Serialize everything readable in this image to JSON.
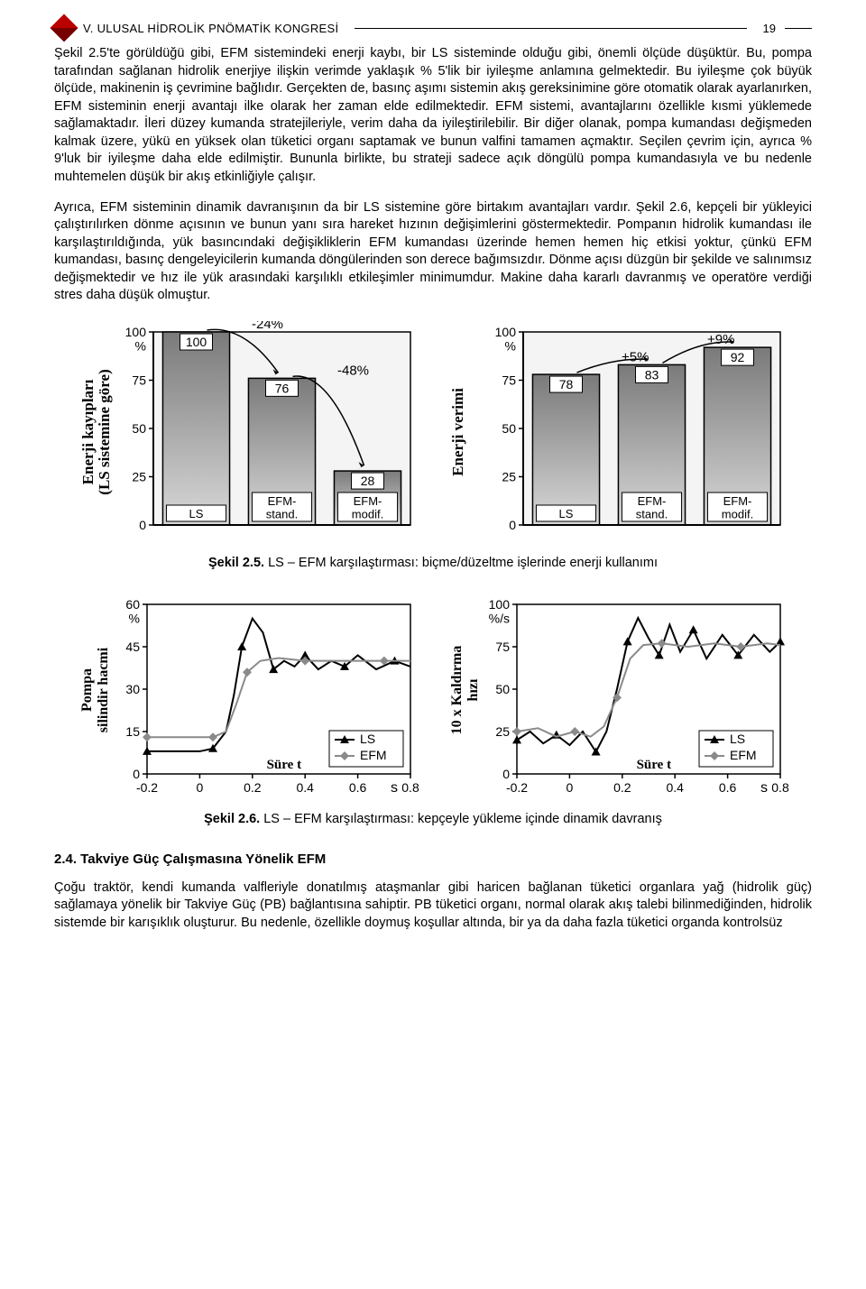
{
  "header": {
    "title": "V. ULUSAL HİDROLİK PNÖMATİK KONGRESİ",
    "page": "19"
  },
  "para1": "Şekil 2.5'te görüldüğü gibi, EFM sistemindeki enerji kaybı, bir LS sisteminde olduğu gibi, önemli ölçüde düşüktür. Bu, pompa tarafından sağlanan hidrolik enerjiye ilişkin verimde yaklaşık % 5'lik bir iyileşme anlamına gelmektedir. Bu iyileşme çok büyük ölçüde, makinenin iş çevrimine bağlıdır. Gerçekten de, basınç aşımı sistemin akış gereksinimine göre otomatik olarak ayarlanırken, EFM sisteminin enerji avantajı ilke olarak her zaman elde edilmektedir. EFM sistemi, avantajlarını özellikle kısmi yüklemede sağlamaktadır. İleri düzey kumanda stratejileriyle, verim daha da iyileştirilebilir. Bir diğer olanak, pompa kumandası değişmeden kalmak üzere, yükü en yüksek olan tüketici organı saptamak ve bunun valfini tamamen açmaktır. Seçilen çevrim için, ayrıca % 9'luk bir iyileşme daha elde edilmiştir. Bununla birlikte, bu strateji sadece açık döngülü pompa kumandasıyla ve bu nedenle muhtemelen düşük bir akış etkinliğiyle çalışır.",
  "para2": "Ayrıca, EFM sisteminin dinamik davranışının da bir LS sistemine göre birtakım avantajları vardır. Şekil 2.6, kepçeli bir yükleyici çalıştırılırken dönme açısının ve bunun yanı sıra hareket hızının değişimlerini göstermektedir. Pompanın hidrolik kumandası ile karşılaştırıldığında, yük basıncındaki değişikliklerin EFM kumandası üzerinde hemen hemen hiç etkisi yoktur, çünkü EFM kumandası, basınç dengeleyicilerin kumanda döngülerinden son derece bağımsızdır. Dönme açısı düzgün bir şekilde ve salınımsız değişmektedir ve hız ile yük arasındaki karşılıklı etkileşimler minimumdur. Makine daha kararlı davranmış ve operatöre verdiği stres daha düşük olmuştur.",
  "caption25_b": "Şekil 2.5.",
  "caption25_t": " LS – EFM karşılaştırması: biçme/düzeltme işlerinde enerji kullanımı",
  "caption26_b": "Şekil 2.6.",
  "caption26_t": " LS – EFM karşılaştırması: kepçeyle yükleme içinde dinamik davranış",
  "section24": "2.4. Takviye Güç Çalışmasına Yönelik EFM",
  "para3": "Çoğu traktör, kendi kumanda valfleriyle donatılmış ataşmanlar gibi haricen bağlanan tüketici organlara yağ (hidrolik güç) sağlamaya yönelik bir Takviye Güç (PB) bağlantısına sahiptir. PB tüketici organı, normal olarak akış talebi bilinmediğinden, hidrolik sistemde bir karışıklık oluşturur. Bu nedenle, özellikle doymuş koşullar altında, bir ya da daha fazla tüketici organda kontrolsüz",
  "chart_a": {
    "type": "bar",
    "ylabel": "Enerji kayıpları\n(LS sistemine göre)",
    "yticks": [
      0,
      25,
      50,
      75,
      100
    ],
    "ytick_labels": [
      "0",
      "25",
      "50",
      "75",
      "100\n%"
    ],
    "categories": [
      "LS",
      "EFM-\nstand.",
      "EFM-\nmodif."
    ],
    "values": [
      100,
      76,
      28
    ],
    "bar_labels": [
      "100",
      "76",
      "28"
    ],
    "arrows": [
      {
        "from_bar": 0,
        "to_bar": 1,
        "label": "-24%"
      },
      {
        "from_bar": 1,
        "to_bar": 2,
        "label": "-48%"
      }
    ],
    "bar_fill_top": "#7a7a7a",
    "bar_fill_bot": "#d8d8d8",
    "stroke": "#000",
    "bg": "#f4f4f4",
    "axis_font": 14,
    "label_font": 16
  },
  "chart_b": {
    "type": "bar",
    "ylabel": "Enerji verimi",
    "yticks": [
      0,
      25,
      50,
      75,
      100
    ],
    "ytick_labels": [
      "0",
      "25",
      "50",
      "75",
      "100\n%"
    ],
    "categories": [
      "LS",
      "EFM-\nstand.",
      "EFM-\nmodif."
    ],
    "values": [
      78,
      83,
      92
    ],
    "bar_labels": [
      "78",
      "83",
      "92"
    ],
    "arrows": [
      {
        "from_bar": 0,
        "to_bar": 1,
        "label": "+5%"
      },
      {
        "from_bar": 1,
        "to_bar": 2,
        "label": "+9%"
      }
    ],
    "bar_fill_top": "#7a7a7a",
    "bar_fill_bot": "#d8d8d8",
    "stroke": "#000",
    "bg": "#f4f4f4",
    "axis_font": 14,
    "label_font": 16
  },
  "chart_c": {
    "type": "line",
    "ylabel": "Pompa\nsilindir hacmi",
    "xlabel": "Süre t",
    "x_unit": "s",
    "xticks": [
      -0.2,
      0,
      0.2,
      0.4,
      0.6,
      0.8
    ],
    "yticks": [
      0,
      15,
      30,
      45,
      60
    ],
    "ytick_labels": [
      "0",
      "15",
      "30",
      "45",
      "60\n%"
    ],
    "series": [
      {
        "name": "LS",
        "color": "#000",
        "marker": "triangle",
        "pts": [
          [
            -0.2,
            8
          ],
          [
            -0.1,
            8
          ],
          [
            0,
            8
          ],
          [
            0.05,
            9
          ],
          [
            0.1,
            15
          ],
          [
            0.13,
            28
          ],
          [
            0.16,
            45
          ],
          [
            0.2,
            55
          ],
          [
            0.24,
            50
          ],
          [
            0.28,
            37
          ],
          [
            0.32,
            40
          ],
          [
            0.36,
            38
          ],
          [
            0.4,
            42
          ],
          [
            0.45,
            37
          ],
          [
            0.5,
            40
          ],
          [
            0.55,
            38
          ],
          [
            0.6,
            42
          ],
          [
            0.67,
            37
          ],
          [
            0.74,
            40
          ],
          [
            0.8,
            38
          ]
        ]
      },
      {
        "name": "EFM",
        "color": "#8a8a8a",
        "marker": "diamond",
        "pts": [
          [
            -0.2,
            13
          ],
          [
            -0.1,
            13
          ],
          [
            0,
            13
          ],
          [
            0.05,
            13
          ],
          [
            0.1,
            15
          ],
          [
            0.14,
            25
          ],
          [
            0.18,
            36
          ],
          [
            0.23,
            40
          ],
          [
            0.3,
            41
          ],
          [
            0.4,
            40
          ],
          [
            0.5,
            40
          ],
          [
            0.6,
            40
          ],
          [
            0.7,
            40
          ],
          [
            0.8,
            40
          ]
        ]
      }
    ],
    "stroke": "#000",
    "bg": "#fff",
    "axis_font": 14
  },
  "chart_d": {
    "type": "line",
    "ylabel": "10 x Kaldırma\nhızı",
    "xlabel": "Süre t",
    "x_unit": "s",
    "xticks": [
      -0.2,
      0,
      0.2,
      0.4,
      0.6,
      0.8
    ],
    "yticks": [
      0,
      25,
      50,
      75,
      100
    ],
    "ytick_labels": [
      "0",
      "25",
      "50",
      "75",
      "100\n%/s"
    ],
    "series": [
      {
        "name": "LS",
        "color": "#000",
        "marker": "triangle",
        "pts": [
          [
            -0.2,
            20
          ],
          [
            -0.15,
            25
          ],
          [
            -0.1,
            18
          ],
          [
            -0.05,
            23
          ],
          [
            0,
            17
          ],
          [
            0.05,
            25
          ],
          [
            0.1,
            13
          ],
          [
            0.14,
            25
          ],
          [
            0.18,
            50
          ],
          [
            0.22,
            78
          ],
          [
            0.26,
            92
          ],
          [
            0.3,
            80
          ],
          [
            0.34,
            70
          ],
          [
            0.38,
            88
          ],
          [
            0.42,
            72
          ],
          [
            0.47,
            85
          ],
          [
            0.52,
            68
          ],
          [
            0.58,
            82
          ],
          [
            0.64,
            70
          ],
          [
            0.7,
            82
          ],
          [
            0.76,
            72
          ],
          [
            0.8,
            78
          ]
        ]
      },
      {
        "name": "EFM",
        "color": "#8a8a8a",
        "marker": "diamond",
        "pts": [
          [
            -0.2,
            25
          ],
          [
            -0.12,
            27
          ],
          [
            -0.05,
            22
          ],
          [
            0.02,
            25
          ],
          [
            0.08,
            22
          ],
          [
            0.13,
            28
          ],
          [
            0.18,
            45
          ],
          [
            0.23,
            68
          ],
          [
            0.28,
            76
          ],
          [
            0.35,
            77
          ],
          [
            0.45,
            75
          ],
          [
            0.55,
            77
          ],
          [
            0.65,
            75
          ],
          [
            0.75,
            77
          ],
          [
            0.8,
            76
          ]
        ]
      }
    ],
    "stroke": "#000",
    "bg": "#fff",
    "axis_font": 14
  }
}
